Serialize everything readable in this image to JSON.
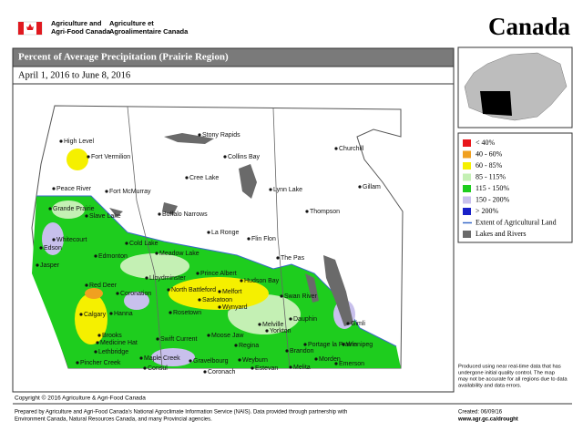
{
  "header": {
    "department_en": [
      "Agriculture and",
      "Agri-Food Canada"
    ],
    "department_fr": [
      "Agriculture et",
      "Agroalimentaire Canada"
    ],
    "wordmark": "Canada"
  },
  "map": {
    "title": "Percent of Average Precipitation (Prairie Region)",
    "subtitle": "April 1, 2016 to June 8, 2016",
    "places": [
      "High Level",
      "Fort Vermilion",
      "Peace River",
      "Fort McMurray",
      "Grande Prairie",
      "Slave Lake",
      "Whitecourt",
      "Cold Lake",
      "Edson",
      "Edmonton",
      "Jasper",
      "Red Deer",
      "Coronation",
      "Calgary",
      "Hanna",
      "Brooks",
      "Medicine Hat",
      "Lethbridge",
      "Pincher Creek",
      "Swift Current",
      "Maple Creek",
      "Consul",
      "Coronach",
      "Gravelbourg",
      "Moose Jaw",
      "Regina",
      "Weyburn",
      "Estevan",
      "Melita",
      "Yorkton",
      "Melville",
      "Rosetown",
      "Saskatoon",
      "Wynyard",
      "North Battleford",
      "Lloydminster",
      "Prince Albert",
      "Melfort",
      "Hudson Bay",
      "Meadow Lake",
      "La Ronge",
      "Buffalo Narrows",
      "Cree Lake",
      "Stony Rapids",
      "Collins Bay",
      "Lynn Lake",
      "Flin Flon",
      "The Pas",
      "Swan River",
      "Dauphin",
      "Brandon",
      "Portage la Prairie",
      "Morden",
      "Winnipeg",
      "Gimli",
      "Emerson",
      "Churchill",
      "Gillam",
      "Thompson"
    ]
  },
  "legend": [
    {
      "label": "< 40%",
      "color": "#e8161b"
    },
    {
      "label": "40 - 60%",
      "color": "#f0a020"
    },
    {
      "label": "60 - 85%",
      "color": "#f5f000"
    },
    {
      "label": "85 - 115%",
      "color": "#c4f0b4"
    },
    {
      "label": "115 - 150%",
      "color": "#1ecd1e"
    },
    {
      "label": "150 - 200%",
      "color": "#c8c0ec"
    },
    {
      "label": "> 200%",
      "color": "#1820c8"
    },
    {
      "label": "Extent of Agricultural Land",
      "color": "#3a6ac8"
    },
    {
      "label": "Lakes and Rivers",
      "color": "#6a6a6a"
    }
  ],
  "note": [
    "Produced using near real-time data that has",
    "undergone initial quality control.  The map",
    "may not be accurate for all regions due to data",
    "availability and data errors."
  ],
  "footer": {
    "copyright": "Copyright © 2016 Agriculture & Agri-Food Canada",
    "prepared": [
      "Prepared by Agriculture and Agri-Food Canada's National Agroclimate Information Service (NAIS).  Data provided through partnership with",
      "Environment Canada, Natural Resources Canada, and many Provincial agencies."
    ],
    "created": "Created: 06/09/16",
    "url": "www.agr.gc.ca/drought"
  }
}
